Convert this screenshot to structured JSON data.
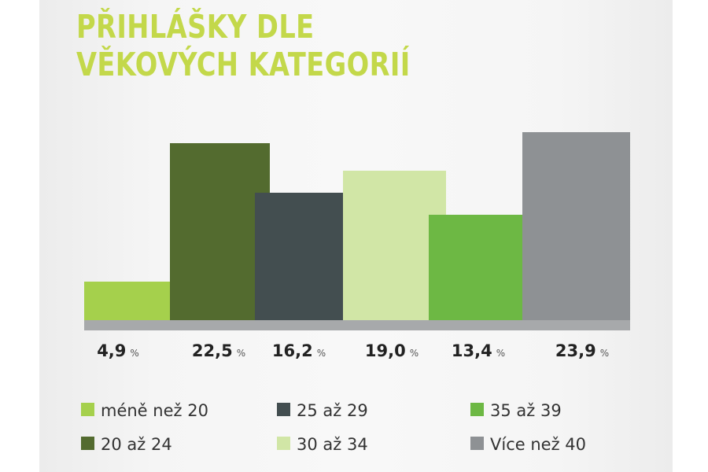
{
  "chart_data": {
    "type": "bar",
    "title": "PŘIHLÁŠKY DLE VĚKOVÝCH KATEGORIÍ",
    "title_lines": [
      "PŘIHLÁŠKY DLE",
      "VĚKOVÝCH KATEGORIÍ"
    ],
    "title_color": "#c3d84a",
    "categories": [
      "méně než 20",
      "20 až 24",
      "25 až 29",
      "30 až 34",
      "35 až 39",
      "Více než 40"
    ],
    "values": [
      4.9,
      22.5,
      16.2,
      19.0,
      13.4,
      23.9
    ],
    "value_labels": [
      "4,9",
      "22,5",
      "16,2",
      "19,0",
      "13,4",
      "23,9"
    ],
    "value_unit": "%",
    "colors": [
      "#a5d04c",
      "#536b2f",
      "#434e50",
      "#d1e6a6",
      "#6db844",
      "#8e9194"
    ],
    "baseline_color": "#a7a9ab",
    "legend": {
      "placement": "bottom",
      "columns": [
        [
          "méně než 20",
          "20 až 24"
        ],
        [
          "25 až 29",
          "30 až 34"
        ],
        [
          "35 až 39",
          "Více než 40"
        ]
      ]
    },
    "ylim": [
      0,
      25
    ],
    "grid": false,
    "xlabel": "",
    "ylabel": ""
  }
}
